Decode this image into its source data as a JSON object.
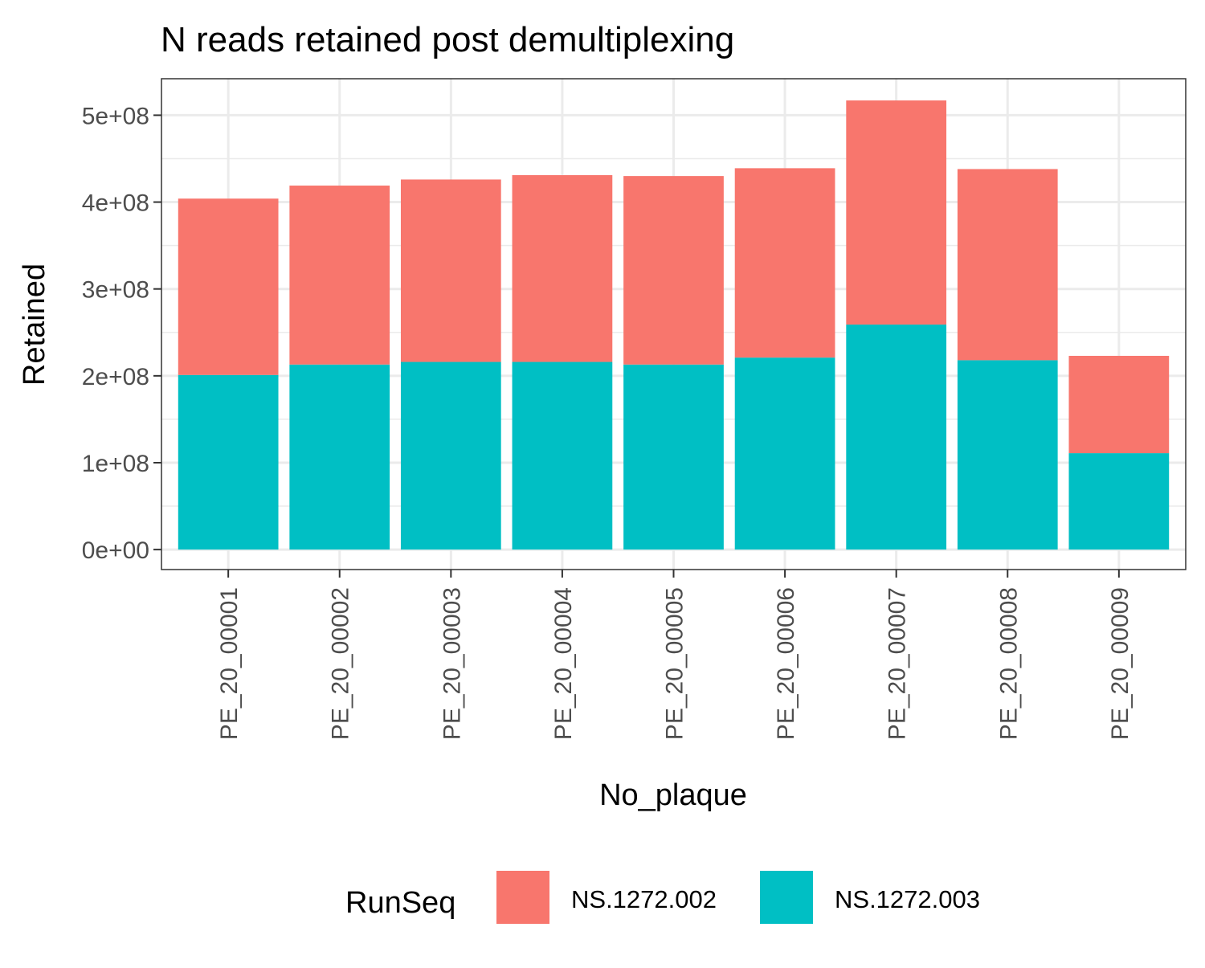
{
  "chart_data": {
    "type": "bar",
    "stacked": true,
    "title": "N reads retained post demultiplexing",
    "xlabel": "No_plaque",
    "ylabel": "Retained",
    "categories": [
      "PE_20_00001",
      "PE_20_00002",
      "PE_20_00003",
      "PE_20_00004",
      "PE_20_00005",
      "PE_20_00006",
      "PE_20_00007",
      "PE_20_00008",
      "PE_20_00009"
    ],
    "series": [
      {
        "name": "NS.1272.003",
        "color": "#00BFC4",
        "values": [
          201000000,
          213000000,
          216000000,
          216000000,
          213000000,
          221000000,
          259000000,
          218000000,
          111000000
        ]
      },
      {
        "name": "NS.1272.002",
        "color": "#F8766D",
        "values": [
          203000000,
          206000000,
          210000000,
          215000000,
          217000000,
          218000000,
          258000000,
          220000000,
          112000000
        ]
      }
    ],
    "ylim": [
      -23000000,
      542000000
    ],
    "yticks": [
      0,
      100000000,
      200000000,
      300000000,
      400000000,
      500000000
    ],
    "ytick_labels": [
      "0e+00",
      "1e+08",
      "2e+08",
      "3e+08",
      "4e+08",
      "5e+08"
    ],
    "grid": true,
    "legend": {
      "title": "RunSeq",
      "position": "bottom",
      "entries": [
        {
          "label": "NS.1272.002",
          "color": "#F8766D"
        },
        {
          "label": "NS.1272.003",
          "color": "#00BFC4"
        }
      ]
    }
  }
}
